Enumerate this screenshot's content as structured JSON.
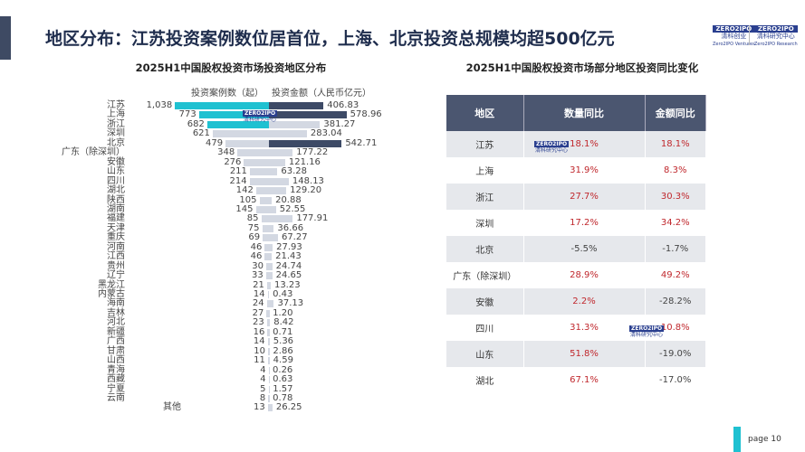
{
  "header": {
    "title": "地区分布：江苏投资案例数位居首位，上海、北京投资总规模均超500亿元",
    "logos": [
      {
        "mark": "ZERO2IPO",
        "cn": "清科创业",
        "en": "Zero2IPO Ventures"
      },
      {
        "mark": "ZERO2IPO",
        "cn": "清科研究中心",
        "en": "Zero2IPO Research"
      }
    ]
  },
  "chart_data": {
    "type": "bar",
    "title": "2025H1中国股权投资市场投资地区分布",
    "series": [
      {
        "name": "投资案例数（起）",
        "values": [
          1038,
          773,
          682,
          621,
          479,
          348,
          276,
          211,
          214,
          142,
          105,
          145,
          85,
          75,
          69,
          46,
          46,
          30,
          33,
          21,
          14,
          24,
          27,
          23,
          16,
          14,
          10,
          11,
          4,
          4,
          5,
          8,
          13
        ]
      },
      {
        "name": "投资金额（人民币亿元）",
        "values": [
          406.83,
          578.96,
          381.27,
          283.04,
          542.71,
          177.22,
          121.16,
          63.28,
          148.13,
          129.2,
          20.88,
          52.55,
          177.91,
          36.66,
          67.27,
          27.93,
          21.43,
          24.74,
          24.65,
          13.23,
          0.43,
          37.13,
          1.2,
          8.42,
          0.71,
          5.36,
          2.86,
          4.59,
          0.26,
          0.63,
          1.57,
          0.78,
          26.25
        ]
      }
    ],
    "categories": [
      "江苏",
      "上海",
      "浙江",
      "深圳",
      "北京",
      "广东（除深圳）",
      "安徽",
      "山东",
      "四川",
      "湖北",
      "陕西",
      "湖南",
      "福建",
      "天津",
      "重庆",
      "河南",
      "江西",
      "贵州",
      "辽宁",
      "黑龙江",
      "内蒙古",
      "海南",
      "吉林",
      "河北",
      "新疆",
      "广西",
      "甘肃",
      "山西",
      "青海",
      "西藏",
      "宁夏",
      "云南",
      "其他"
    ],
    "colors": {
      "count_top": "#1fc1d1",
      "amount_top": "#3d4a66",
      "other": "#d3d8e2"
    }
  },
  "table": {
    "title": "2025H1中国股权投资市场部分地区投资同比变化",
    "headers": [
      "地区",
      "数量同比",
      "金额同比"
    ],
    "rows": [
      [
        "江苏",
        "18.1%",
        "18.1%"
      ],
      [
        "上海",
        "31.9%",
        "8.3%"
      ],
      [
        "浙江",
        "27.7%",
        "30.3%"
      ],
      [
        "深圳",
        "17.2%",
        "34.2%"
      ],
      [
        "北京",
        "-5.5%",
        "-1.7%"
      ],
      [
        "广东（除深圳）",
        "28.9%",
        "49.2%"
      ],
      [
        "安徽",
        "2.2%",
        "-28.2%"
      ],
      [
        "四川",
        "31.3%",
        "10.8%"
      ],
      [
        "山东",
        "51.8%",
        "-19.0%"
      ],
      [
        "湖北",
        "67.1%",
        "-17.0%"
      ]
    ]
  },
  "footer": {
    "page": "page  10"
  }
}
